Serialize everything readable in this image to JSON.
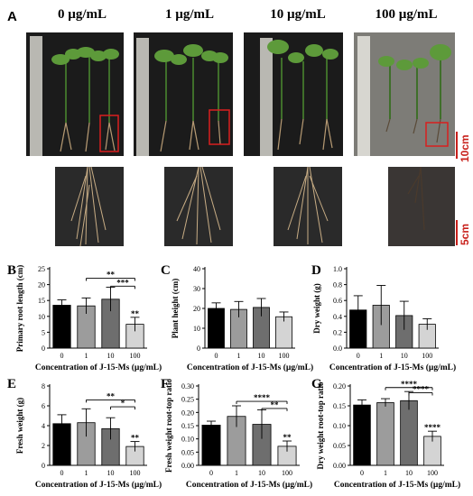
{
  "figure": {
    "panel_a_letter": "A",
    "concentrations": [
      "0 µg/mL",
      "1 µg/mL",
      "10 µg/mL",
      "100 µg/mL"
    ],
    "scale_bar_top": "10cm",
    "scale_bar_bottom": "5cm",
    "bar_colors": [
      "#000000",
      "#9c9c9c",
      "#6e6e6e",
      "#d4d4d4"
    ],
    "scale_bar_color": "#c8201b"
  },
  "chart_data": [
    {
      "panel": "B",
      "type": "bar",
      "categories": [
        "0",
        "1",
        "10",
        "100"
      ],
      "values": [
        13.5,
        13.3,
        15.4,
        7.5
      ],
      "errors": [
        1.7,
        2.5,
        3.8,
        2.2
      ],
      "ylabel": "Primary root length (cm)",
      "xlabel": "Concentration of J-15-Ms (µg/mL)",
      "ylim": [
        0,
        25
      ],
      "yticks": [
        "0",
        "5",
        "10",
        "15",
        "20",
        "25"
      ],
      "annotations": [
        {
          "type": "bar",
          "at": 3,
          "text": "**"
        },
        {
          "type": "bracket",
          "from": 1,
          "to": 3,
          "text": "**",
          "y": 22.0
        },
        {
          "type": "bracket",
          "from": 2,
          "to": 3,
          "text": "***",
          "y": 19.5
        }
      ]
    },
    {
      "panel": "C",
      "type": "bar",
      "categories": [
        "0",
        "1",
        "10",
        "100"
      ],
      "values": [
        20.0,
        19.5,
        20.5,
        15.8
      ],
      "errors": [
        2.8,
        4.0,
        4.5,
        2.4
      ],
      "ylabel": "Plant height (cm)",
      "xlabel": "Concentration of J-15-Ms (µg/mL)",
      "ylim": [
        0,
        40
      ],
      "yticks": [
        "0",
        "10",
        "20",
        "30",
        "40"
      ],
      "annotations": []
    },
    {
      "panel": "D",
      "type": "bar",
      "categories": [
        "0",
        "1",
        "10",
        "100"
      ],
      "values": [
        0.48,
        0.54,
        0.41,
        0.3
      ],
      "errors": [
        0.18,
        0.25,
        0.18,
        0.07
      ],
      "ylabel": "Dry weight (g)",
      "xlabel": "Concentration of J-15-Ms (µg/mL)",
      "ylim": [
        0,
        1.0
      ],
      "yticks": [
        "0.0",
        "0.2",
        "0.4",
        "0.6",
        "0.8",
        "1.0"
      ],
      "annotations": []
    },
    {
      "panel": "E",
      "type": "bar",
      "categories": [
        "0",
        "1",
        "10",
        "100"
      ],
      "values": [
        4.2,
        4.3,
        3.7,
        1.9
      ],
      "errors": [
        0.9,
        1.4,
        1.1,
        0.5
      ],
      "ylabel": "Fresh weight (g)",
      "xlabel": "Concentration of J-15-Ms (µg/mL)",
      "ylim": [
        0,
        8
      ],
      "yticks": [
        "0",
        "2",
        "4",
        "6",
        "8"
      ],
      "annotations": [
        {
          "type": "bar",
          "at": 3,
          "text": "**"
        },
        {
          "type": "bracket",
          "from": 1,
          "to": 3,
          "text": "**",
          "y": 6.6
        },
        {
          "type": "bracket",
          "from": 2,
          "to": 3,
          "text": "*",
          "y": 5.9
        }
      ]
    },
    {
      "panel": "F",
      "type": "bar",
      "categories": [
        "0",
        "1",
        "10",
        "100"
      ],
      "values": [
        0.152,
        0.185,
        0.155,
        0.072
      ],
      "errors": [
        0.015,
        0.04,
        0.055,
        0.02
      ],
      "ylabel": "Fresh weight root-top ratio",
      "xlabel": "Concentration of J-15-Ms (µg/mL)",
      "ylim": [
        0,
        0.3
      ],
      "yticks": [
        "0.00",
        "0.05",
        "0.10",
        "0.15",
        "0.20",
        "0.25",
        "0.30"
      ],
      "annotations": [
        {
          "type": "bar",
          "at": 3,
          "text": "**"
        },
        {
          "type": "bracket",
          "from": 1,
          "to": 3,
          "text": "****",
          "y": 0.242
        },
        {
          "type": "bracket",
          "from": 2,
          "to": 3,
          "text": "**",
          "y": 0.215
        }
      ]
    },
    {
      "panel": "G",
      "type": "bar",
      "categories": [
        "0",
        "1",
        "10",
        "100"
      ],
      "values": [
        0.152,
        0.158,
        0.163,
        0.073
      ],
      "errors": [
        0.013,
        0.01,
        0.023,
        0.013
      ],
      "ylabel": "Dry weight root-top ratio",
      "xlabel": "Concentration of J-15-Ms (µg/mL)",
      "ylim": [
        0,
        0.2
      ],
      "yticks": [
        "0.00",
        "0.05",
        "0.10",
        "0.15",
        "0.20"
      ],
      "annotations": [
        {
          "type": "bar",
          "at": 3,
          "text": "****"
        },
        {
          "type": "bracket",
          "from": 1,
          "to": 3,
          "text": "****",
          "y": 0.196
        },
        {
          "type": "bracket",
          "from": 2,
          "to": 3,
          "text": "****",
          "y": 0.183
        }
      ]
    }
  ]
}
